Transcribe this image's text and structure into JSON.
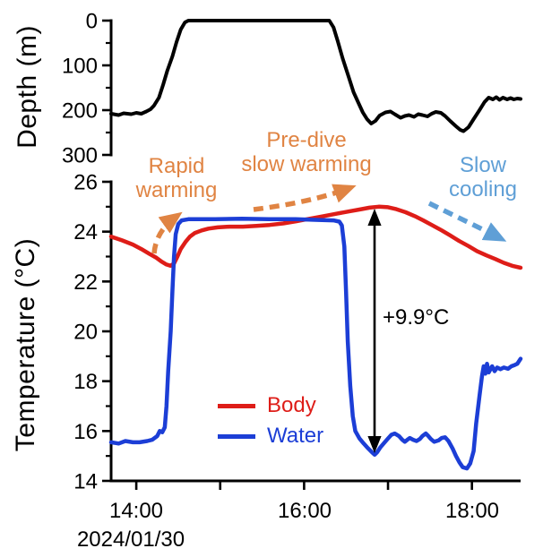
{
  "figure": {
    "background": "#ffffff"
  },
  "chart_data": [
    {
      "type": "line",
      "panel": "depth",
      "title": "",
      "ylabel": "Depth (m)",
      "ylim": [
        300,
        0
      ],
      "yticks": [
        0,
        100,
        200,
        300
      ],
      "yminorticks": [
        50,
        150,
        250
      ],
      "x_unit": "hour_of_day",
      "xlim": [
        13.7,
        18.58
      ],
      "grid": false,
      "series": [
        {
          "name": "Depth",
          "color": "#000000",
          "points": [
            [
              13.7,
              208
            ],
            [
              13.79,
              211
            ],
            [
              13.85,
              207
            ],
            [
              13.94,
              209
            ],
            [
              14.0,
              206
            ],
            [
              14.06,
              208
            ],
            [
              14.12,
              203
            ],
            [
              14.17,
              198
            ],
            [
              14.21,
              190
            ],
            [
              14.27,
              172
            ],
            [
              14.32,
              143
            ],
            [
              14.37,
              112
            ],
            [
              14.43,
              80
            ],
            [
              14.48,
              48
            ],
            [
              14.53,
              20
            ],
            [
              14.58,
              4
            ],
            [
              14.62,
              0
            ],
            [
              16.3,
              0
            ],
            [
              16.35,
              15
            ],
            [
              16.4,
              45
            ],
            [
              16.46,
              85
            ],
            [
              16.53,
              125
            ],
            [
              16.59,
              160
            ],
            [
              16.65,
              185
            ],
            [
              16.7,
              205
            ],
            [
              16.75,
              220
            ],
            [
              16.8,
              230
            ],
            [
              16.85,
              224
            ],
            [
              16.9,
              212
            ],
            [
              16.97,
              205
            ],
            [
              17.03,
              203
            ],
            [
              17.08,
              209
            ],
            [
              17.15,
              217
            ],
            [
              17.2,
              213
            ],
            [
              17.25,
              211
            ],
            [
              17.31,
              215
            ],
            [
              17.36,
              209
            ],
            [
              17.41,
              211
            ],
            [
              17.47,
              214
            ],
            [
              17.52,
              208
            ],
            [
              17.57,
              204
            ],
            [
              17.63,
              206
            ],
            [
              17.68,
              213
            ],
            [
              17.74,
              224
            ],
            [
              17.81,
              236
            ],
            [
              17.86,
              244
            ],
            [
              17.9,
              247
            ],
            [
              17.96,
              238
            ],
            [
              18.02,
              220
            ],
            [
              18.09,
              200
            ],
            [
              18.15,
              182
            ],
            [
              18.2,
              172
            ],
            [
              18.25,
              176
            ],
            [
              18.29,
              171
            ],
            [
              18.33,
              177
            ],
            [
              18.37,
              172
            ],
            [
              18.42,
              176
            ],
            [
              18.46,
              173
            ],
            [
              18.5,
              176
            ],
            [
              18.54,
              174
            ],
            [
              18.58,
              175
            ]
          ]
        }
      ]
    },
    {
      "type": "line",
      "panel": "temperature",
      "title": "",
      "ylabel": "Temperature (°C)",
      "ylim": [
        14,
        26
      ],
      "yticks": [
        14,
        16,
        18,
        20,
        22,
        24,
        26
      ],
      "yminorticks": [
        15,
        17,
        19,
        21,
        23,
        25
      ],
      "x_unit": "hour_of_day",
      "xlim": [
        13.7,
        18.58
      ],
      "xticks": [
        14,
        15,
        16,
        17,
        18
      ],
      "xtick_labels": [
        {
          "t": 14,
          "label": "14:00"
        },
        {
          "t": 16,
          "label": "16:00"
        },
        {
          "t": 18,
          "label": "18:00"
        }
      ],
      "date_label": "2024/01/30",
      "grid": false,
      "legend_position": "inside-bottom-left",
      "series": [
        {
          "name": "Body",
          "color": "#de1d18",
          "points": [
            [
              13.7,
              23.8
            ],
            [
              13.83,
              23.65
            ],
            [
              13.96,
              23.48
            ],
            [
              14.06,
              23.3
            ],
            [
              14.16,
              23.1
            ],
            [
              14.24,
              22.95
            ],
            [
              14.3,
              22.8
            ],
            [
              14.36,
              22.68
            ],
            [
              14.41,
              22.63
            ],
            [
              14.45,
              22.72
            ],
            [
              14.49,
              23.0
            ],
            [
              14.53,
              23.3
            ],
            [
              14.59,
              23.6
            ],
            [
              14.64,
              23.8
            ],
            [
              14.7,
              23.95
            ],
            [
              14.78,
              24.05
            ],
            [
              14.86,
              24.12
            ],
            [
              14.97,
              24.17
            ],
            [
              15.11,
              24.2
            ],
            [
              15.27,
              24.2
            ],
            [
              15.43,
              24.23
            ],
            [
              15.59,
              24.27
            ],
            [
              15.75,
              24.33
            ],
            [
              15.91,
              24.42
            ],
            [
              16.07,
              24.52
            ],
            [
              16.23,
              24.62
            ],
            [
              16.39,
              24.72
            ],
            [
              16.55,
              24.82
            ],
            [
              16.68,
              24.9
            ],
            [
              16.78,
              24.96
            ],
            [
              16.89,
              25.0
            ],
            [
              17.0,
              24.98
            ],
            [
              17.1,
              24.9
            ],
            [
              17.21,
              24.78
            ],
            [
              17.32,
              24.62
            ],
            [
              17.42,
              24.45
            ],
            [
              17.53,
              24.25
            ],
            [
              17.64,
              24.05
            ],
            [
              17.74,
              23.85
            ],
            [
              17.85,
              23.62
            ],
            [
              17.96,
              23.42
            ],
            [
              18.06,
              23.22
            ],
            [
              18.17,
              23.05
            ],
            [
              18.28,
              22.9
            ],
            [
              18.38,
              22.75
            ],
            [
              18.49,
              22.62
            ],
            [
              18.58,
              22.55
            ]
          ]
        },
        {
          "name": "Water",
          "color": "#1c3ed6",
          "points": [
            [
              13.7,
              15.55
            ],
            [
              13.79,
              15.5
            ],
            [
              13.87,
              15.6
            ],
            [
              13.96,
              15.55
            ],
            [
              14.04,
              15.55
            ],
            [
              14.13,
              15.6
            ],
            [
              14.19,
              15.65
            ],
            [
              14.25,
              15.8
            ],
            [
              14.28,
              16.0
            ],
            [
              14.31,
              15.95
            ],
            [
              14.34,
              16.15
            ],
            [
              14.36,
              17.0
            ],
            [
              14.38,
              18.4
            ],
            [
              14.41,
              20.0
            ],
            [
              14.43,
              21.6
            ],
            [
              14.45,
              23.0
            ],
            [
              14.47,
              23.9
            ],
            [
              14.5,
              24.3
            ],
            [
              14.54,
              24.45
            ],
            [
              14.62,
              24.5
            ],
            [
              14.94,
              24.5
            ],
            [
              15.26,
              24.52
            ],
            [
              15.58,
              24.5
            ],
            [
              15.9,
              24.5
            ],
            [
              16.17,
              24.47
            ],
            [
              16.35,
              24.45
            ],
            [
              16.42,
              24.4
            ],
            [
              16.45,
              24.25
            ],
            [
              16.48,
              23.4
            ],
            [
              16.5,
              21.6
            ],
            [
              16.52,
              19.6
            ],
            [
              16.55,
              17.8
            ],
            [
              16.58,
              16.6
            ],
            [
              16.61,
              16.0
            ],
            [
              16.66,
              15.7
            ],
            [
              16.71,
              15.5
            ],
            [
              16.75,
              15.35
            ],
            [
              16.8,
              15.18
            ],
            [
              16.84,
              15.05
            ],
            [
              16.87,
              15.15
            ],
            [
              16.91,
              15.35
            ],
            [
              16.96,
              15.55
            ],
            [
              17.0,
              15.7
            ],
            [
              17.04,
              15.85
            ],
            [
              17.08,
              15.9
            ],
            [
              17.13,
              15.8
            ],
            [
              17.17,
              15.65
            ],
            [
              17.2,
              15.57
            ],
            [
              17.23,
              15.65
            ],
            [
              17.26,
              15.72
            ],
            [
              17.3,
              15.65
            ],
            [
              17.34,
              15.6
            ],
            [
              17.38,
              15.68
            ],
            [
              17.41,
              15.8
            ],
            [
              17.45,
              15.9
            ],
            [
              17.48,
              15.8
            ],
            [
              17.51,
              15.68
            ],
            [
              17.55,
              15.57
            ],
            [
              17.6,
              15.62
            ],
            [
              17.64,
              15.72
            ],
            [
              17.68,
              15.75
            ],
            [
              17.72,
              15.6
            ],
            [
              17.77,
              15.3
            ],
            [
              17.81,
              15.0
            ],
            [
              17.85,
              14.75
            ],
            [
              17.89,
              14.55
            ],
            [
              17.94,
              14.5
            ],
            [
              17.98,
              14.7
            ],
            [
              18.02,
              15.2
            ],
            [
              18.05,
              16.3
            ],
            [
              18.09,
              17.4
            ],
            [
              18.12,
              18.2
            ],
            [
              18.14,
              18.6
            ],
            [
              18.16,
              18.3
            ],
            [
              18.18,
              18.7
            ],
            [
              18.2,
              18.35
            ],
            [
              18.24,
              18.6
            ],
            [
              18.27,
              18.4
            ],
            [
              18.3,
              18.55
            ],
            [
              18.34,
              18.48
            ],
            [
              18.38,
              18.55
            ],
            [
              18.43,
              18.5
            ],
            [
              18.47,
              18.6
            ],
            [
              18.51,
              18.65
            ],
            [
              18.54,
              18.7
            ],
            [
              18.58,
              18.9
            ]
          ]
        }
      ],
      "annotations": [
        {
          "id": "rapid-warming",
          "lines": [
            "Rapid",
            "warming"
          ],
          "color": "#e08443"
        },
        {
          "id": "pre-dive-slow-warming",
          "lines": [
            "Pre-dive",
            "slow warming"
          ],
          "color": "#e08443"
        },
        {
          "id": "slow-cooling",
          "lines": [
            "Slow",
            "cooling"
          ],
          "color": "#5f9fd6"
        },
        {
          "id": "delta-temperature",
          "lines": [
            "+9.9°C"
          ],
          "color": "#000000"
        }
      ]
    }
  ]
}
